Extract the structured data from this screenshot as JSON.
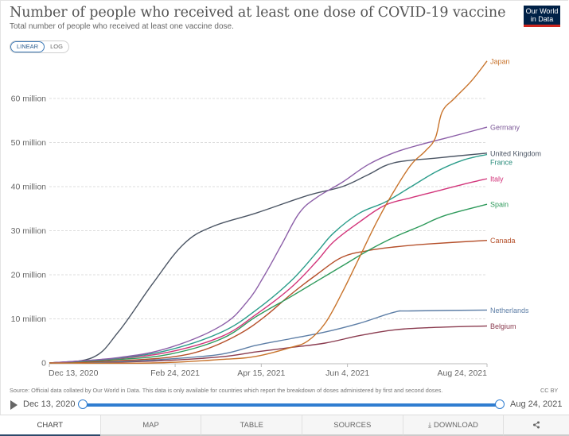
{
  "header": {
    "title": "Number of people who received at least one dose of COVID-19 vaccine",
    "subtitle": "Total number of people who received at least one vaccine dose.",
    "logo_line1": "Our World",
    "logo_line2": "in Data",
    "scale_options": [
      "LINEAR",
      "LOG"
    ],
    "scale_selected": "LINEAR"
  },
  "footer": {
    "source": "Source: Official data collated by Our World in Data. This data is only available for countries which report the breakdown of doses administered by first and second doses.",
    "license": "CC BY"
  },
  "timeline": {
    "start_label": "Dec 13, 2020",
    "end_label": "Aug 24, 2021",
    "play_icon": "play-icon"
  },
  "tabs": [
    {
      "label": "CHART",
      "active": true
    },
    {
      "label": "MAP",
      "active": false
    },
    {
      "label": "TABLE",
      "active": false
    },
    {
      "label": "SOURCES",
      "active": false
    },
    {
      "label": "DOWNLOAD",
      "active": false,
      "icon": "download-icon"
    },
    {
      "label": "",
      "active": false,
      "icon": "share-icon"
    }
  ],
  "chart_data": {
    "type": "line",
    "title": "Number of people who received at least one dose of COVID-19 vaccine",
    "subtitle": "Total number of people who received at least one vaccine dose.",
    "xlabel": "",
    "ylabel": "",
    "x_unit": "days since Dec 13, 2020",
    "x_range": [
      0,
      254
    ],
    "ylim": [
      0,
      70
    ],
    "y_unit": "million",
    "grid": "horizontal dashed",
    "legend": "right (end-of-line labels)",
    "x_ticks": [
      {
        "day": 0,
        "label": "Dec 13, 2020"
      },
      {
        "day": 73,
        "label": "Feb 24, 2021"
      },
      {
        "day": 123,
        "label": "Apr 15, 2021"
      },
      {
        "day": 173,
        "label": "Jun 4, 2021"
      },
      {
        "day": 254,
        "label": "Aug 24, 2021"
      }
    ],
    "y_ticks": [
      {
        "value": 0,
        "label": "0"
      },
      {
        "value": 10,
        "label": "10 million"
      },
      {
        "value": 20,
        "label": "20 million"
      },
      {
        "value": 30,
        "label": "30 million"
      },
      {
        "value": 40,
        "label": "40 million"
      },
      {
        "value": 50,
        "label": "50 million"
      },
      {
        "value": 60,
        "label": "60 million"
      }
    ],
    "series": [
      {
        "name": "Japan",
        "color": "#c8732b",
        "x": [
          0,
          60,
          100,
          120,
          140,
          150,
          160,
          170,
          180,
          190,
          200,
          210,
          218,
          224,
          228,
          235,
          245,
          254
        ],
        "values": [
          0,
          0,
          0.8,
          1.5,
          3.5,
          5,
          9,
          16,
          24,
          32,
          39,
          45,
          48,
          51,
          57,
          60,
          64,
          68.5
        ]
      },
      {
        "name": "Germany",
        "color": "#8c5fa8",
        "x": [
          0,
          40,
          70,
          100,
          115,
          125,
          135,
          145,
          155,
          170,
          185,
          200,
          215,
          230,
          254
        ],
        "values": [
          0,
          1.2,
          3.5,
          8.5,
          14,
          20,
          27,
          34,
          37.5,
          41,
          45,
          47.7,
          49.5,
          51,
          53.5
        ]
      },
      {
        "name": "United Kingdom",
        "color": "#4b5564",
        "x": [
          0,
          25,
          40,
          60,
          78,
          95,
          120,
          150,
          170,
          185,
          200,
          225,
          254
        ],
        "values": [
          0,
          1.2,
          7,
          18,
          27,
          31,
          34,
          38,
          40,
          42.7,
          45.4,
          46.5,
          47.6
        ]
      },
      {
        "name": "France",
        "color": "#2a9c8a",
        "x": [
          0,
          40,
          70,
          100,
          120,
          140,
          155,
          165,
          180,
          195,
          210,
          225,
          240,
          254
        ],
        "values": [
          0,
          1.1,
          3,
          7,
          12,
          18.5,
          25,
          29.5,
          34,
          36.5,
          40,
          43.5,
          46,
          47.3
        ]
      },
      {
        "name": "Italy",
        "color": "#d2347a",
        "x": [
          0,
          40,
          70,
          100,
          120,
          140,
          155,
          165,
          180,
          195,
          210,
          225,
          240,
          254
        ],
        "values": [
          0,
          1,
          2.5,
          6,
          11,
          17,
          23,
          27.5,
          32,
          35.8,
          37.5,
          39,
          40.5,
          41.8
        ]
      },
      {
        "name": "Spain",
        "color": "#2e9a5b",
        "x": [
          0,
          40,
          70,
          100,
          120,
          140,
          155,
          170,
          185,
          200,
          215,
          230,
          254
        ],
        "values": [
          0,
          0.8,
          2,
          5.5,
          10.5,
          15,
          18.5,
          22,
          25.5,
          28.5,
          31,
          33.5,
          36
        ]
      },
      {
        "name": "Canada",
        "color": "#b5502b",
        "x": [
          0,
          40,
          70,
          90,
          110,
          125,
          140,
          155,
          170,
          185,
          200,
          220,
          254
        ],
        "values": [
          0,
          0.5,
          1.3,
          3,
          6.5,
          10.5,
          15.5,
          20,
          24,
          25.5,
          26.3,
          27,
          27.8
        ]
      },
      {
        "name": "Netherlands",
        "color": "#5d7ea6",
        "x": [
          0,
          40,
          70,
          100,
          120,
          140,
          160,
          180,
          200,
          210,
          254
        ],
        "values": [
          0,
          0.3,
          0.9,
          2,
          4,
          5.5,
          7,
          9,
          11.5,
          11.8,
          12
        ]
      },
      {
        "name": "Belgium",
        "color": "#8a3b4f",
        "x": [
          0,
          40,
          70,
          100,
          120,
          140,
          160,
          180,
          200,
          220,
          254
        ],
        "values": [
          0,
          0.2,
          0.6,
          1.4,
          2.5,
          3.5,
          4.5,
          6.2,
          7.5,
          8,
          8.4
        ]
      }
    ],
    "labels": [
      {
        "name": "Japan",
        "color": "#c8732b"
      },
      {
        "name": "Germany",
        "color": "#7d5a98"
      },
      {
        "name": "United Kingdom",
        "color": "#4b5564"
      },
      {
        "name": "France",
        "color": "#2a8c7c"
      },
      {
        "name": "Italy",
        "color": "#d2347a"
      },
      {
        "name": "Spain",
        "color": "#2e9a5b"
      },
      {
        "name": "Canada",
        "color": "#b5502b"
      },
      {
        "name": "Netherlands",
        "color": "#5d7ea6"
      },
      {
        "name": "Belgium",
        "color": "#8a3b4f"
      }
    ]
  }
}
